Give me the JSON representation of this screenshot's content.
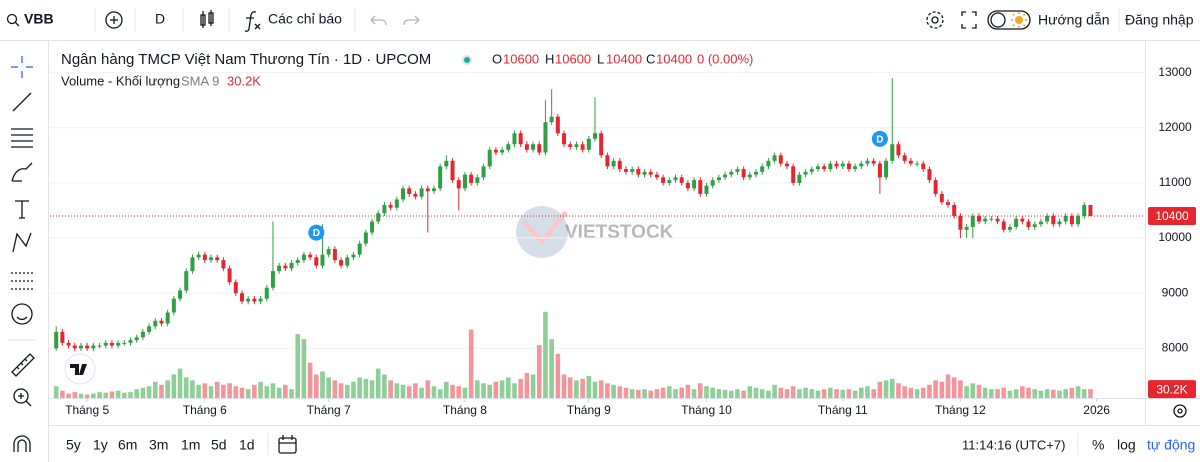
{
  "toolbar": {
    "symbol": "VBB",
    "interval": "D",
    "indicators": "Các chỉ báo",
    "guide": "Hướng dẫn",
    "login": "Đăng nhập"
  },
  "legend": {
    "title": "Ngân hàng TMCP Việt Nam Thương Tín · 1D · UPCOM",
    "o": "O",
    "h": "H",
    "l": "L",
    "c": "C",
    "change": "0 (0.00%)",
    "volume_title": "Volume - Khối lượng",
    "sma": "SMA 9"
  },
  "chart_data": {
    "type": "candlestick",
    "open": [
      8000,
      8300,
      8100,
      8050,
      8000,
      8050,
      8000,
      8050,
      8050,
      8100,
      8050,
      8100,
      8100,
      8150,
      8200,
      8300,
      8400,
      8500,
      8450,
      8650,
      8900,
      9050,
      9400,
      9650,
      9700,
      9600,
      9650,
      9600,
      9450,
      9200,
      9000,
      8850,
      8900,
      8850,
      8900,
      9100,
      9400,
      9500,
      9450,
      9550,
      9600,
      9700,
      9650,
      9500,
      9700,
      9800,
      9600,
      9500,
      9650,
      9700,
      9900,
      10100,
      10300,
      10450,
      10600,
      10550,
      10700,
      10900,
      10800,
      10750,
      10900,
      10850,
      10900,
      11300,
      11400,
      11050,
      10900,
      11150,
      11000,
      11100,
      11300,
      11600,
      11550,
      11600,
      11700,
      11900,
      11700,
      11600,
      11700,
      11550,
      12100,
      12200,
      11900,
      11700,
      11650,
      11700,
      11600,
      11800,
      11900,
      11500,
      11300,
      11400,
      11250,
      11200,
      11250,
      11150,
      11200,
      11150,
      11100,
      11000,
      11050,
      11100,
      11000,
      10900,
      11050,
      10800,
      10950,
      11050,
      11100,
      11150,
      11200,
      11250,
      11100,
      11150,
      11200,
      11300,
      11400,
      11500,
      11350,
      11300,
      11000,
      11150,
      11200,
      11250,
      11300,
      11250,
      11350,
      11300,
      11350,
      11250,
      11300,
      11350,
      11400,
      11350,
      11100,
      11400,
      11700,
      11500,
      11400,
      11350,
      11350,
      11250,
      11050,
      10800,
      10650,
      10600,
      10400,
      10150,
      10200,
      10400,
      10300,
      10350,
      10350,
      10300,
      10150,
      10200,
      10350,
      10300,
      10200,
      10250,
      10300,
      10400,
      10250,
      10300,
      10400,
      10250,
      10400,
      10600
    ],
    "high": [
      8400,
      8350,
      8150,
      8100,
      8100,
      8100,
      8100,
      8100,
      8150,
      8150,
      8150,
      8150,
      8200,
      8250,
      8350,
      8450,
      8550,
      8550,
      8700,
      8950,
      9100,
      9450,
      9700,
      9750,
      9750,
      9700,
      9700,
      9650,
      9500,
      9250,
      9050,
      8950,
      8950,
      8950,
      9150,
      10300,
      9550,
      9550,
      9600,
      9650,
      9750,
      9750,
      9700,
      10250,
      9850,
      9850,
      9650,
      9700,
      9750,
      9950,
      10150,
      10350,
      10500,
      10650,
      10650,
      10750,
      10950,
      10950,
      10850,
      10950,
      10950,
      10950,
      11350,
      11500,
      11450,
      11100,
      11200,
      11200,
      11150,
      11350,
      11650,
      11650,
      11650,
      11750,
      11950,
      11950,
      11750,
      11750,
      11750,
      12500,
      12700,
      12250,
      11950,
      11750,
      11750,
      11750,
      11850,
      12550,
      11950,
      11550,
      11450,
      11450,
      11300,
      11300,
      11300,
      11250,
      11250,
      11200,
      11150,
      11100,
      11150,
      11150,
      11050,
      11100,
      11100,
      11000,
      11100,
      11150,
      11200,
      11250,
      11300,
      11300,
      11200,
      11250,
      11350,
      11450,
      11550,
      11550,
      11400,
      11350,
      11200,
      11250,
      11300,
      11350,
      11350,
      11400,
      11400,
      11400,
      11400,
      11350,
      11400,
      11450,
      11450,
      11400,
      11450,
      12900,
      11750,
      11550,
      11450,
      11400,
      11400,
      11300,
      11100,
      10850,
      10700,
      10650,
      10450,
      10250,
      10450,
      10450,
      10400,
      10400,
      10400,
      10350,
      10250,
      10400,
      10400,
      10350,
      10300,
      10350,
      10450,
      10450,
      10350,
      10450,
      10450,
      10450,
      10650,
      10600
    ],
    "low": [
      7950,
      8050,
      8000,
      7950,
      7950,
      7950,
      7950,
      8000,
      8000,
      8000,
      8000,
      8050,
      8050,
      8100,
      8150,
      8250,
      8350,
      8400,
      8400,
      8600,
      8850,
      9000,
      9350,
      9600,
      9550,
      9550,
      9550,
      9400,
      9150,
      8950,
      8800,
      8800,
      8800,
      8800,
      8850,
      9050,
      9350,
      9400,
      9400,
      9500,
      9550,
      9600,
      9450,
      9450,
      9650,
      9550,
      9450,
      9450,
      9600,
      9650,
      9850,
      10050,
      10250,
      10400,
      10500,
      10500,
      10650,
      10750,
      10700,
      10700,
      10100,
      10800,
      10850,
      11250,
      11000,
      10500,
      10850,
      10950,
      10950,
      11050,
      11250,
      11500,
      11500,
      11550,
      11650,
      11650,
      11550,
      11550,
      11500,
      11500,
      12050,
      11850,
      11650,
      11600,
      11600,
      11550,
      11550,
      11750,
      11450,
      11250,
      11250,
      11200,
      11150,
      11150,
      11100,
      11100,
      11100,
      11050,
      10950,
      10950,
      11000,
      10950,
      10850,
      10850,
      10750,
      10750,
      10900,
      11000,
      11050,
      11100,
      11150,
      11050,
      11050,
      11100,
      11150,
      11250,
      11350,
      11300,
      11250,
      10950,
      10950,
      11100,
      11150,
      11200,
      11200,
      11200,
      11250,
      11250,
      11200,
      11200,
      11250,
      11300,
      11300,
      10800,
      11050,
      11350,
      11450,
      11350,
      11300,
      11300,
      11200,
      11000,
      10750,
      10600,
      10550,
      10350,
      10000,
      10000,
      10000,
      10250,
      10250,
      10300,
      10250,
      10100,
      10100,
      10150,
      10250,
      10150,
      10150,
      10200,
      10250,
      10200,
      10200,
      10250,
      10200,
      10200,
      10350,
      10400
    ],
    "close": [
      8300,
      8100,
      8050,
      8000,
      8050,
      8000,
      8050,
      8050,
      8100,
      8050,
      8100,
      8100,
      8150,
      8200,
      8300,
      8400,
      8500,
      8450,
      8650,
      8900,
      9050,
      9400,
      9650,
      9700,
      9600,
      9650,
      9600,
      9450,
      9200,
      9000,
      8850,
      8900,
      8850,
      8900,
      9100,
      9400,
      9500,
      9450,
      9550,
      9600,
      9700,
      9650,
      9500,
      9700,
      9800,
      9600,
      9500,
      9650,
      9700,
      9900,
      10100,
      10300,
      10450,
      10600,
      10550,
      10700,
      10900,
      10800,
      10750,
      10900,
      10850,
      10900,
      11300,
      11400,
      11050,
      10900,
      11150,
      11000,
      11100,
      11300,
      11600,
      11550,
      11600,
      11700,
      11900,
      11700,
      11600,
      11700,
      11550,
      12100,
      12200,
      11900,
      11700,
      11650,
      11700,
      11600,
      11800,
      11900,
      11500,
      11300,
      11400,
      11250,
      11200,
      11250,
      11150,
      11200,
      11150,
      11100,
      11000,
      11050,
      11100,
      11000,
      10900,
      11050,
      10800,
      10950,
      11050,
      11100,
      11150,
      11200,
      11250,
      11100,
      11150,
      11200,
      11300,
      11400,
      11500,
      11350,
      11300,
      11000,
      11150,
      11200,
      11250,
      11300,
      11250,
      11350,
      11300,
      11350,
      11250,
      11300,
      11350,
      11400,
      11350,
      11100,
      11400,
      11700,
      11500,
      11400,
      11350,
      11350,
      11250,
      11050,
      10800,
      10650,
      10600,
      10400,
      10150,
      10200,
      10400,
      10300,
      10350,
      10350,
      10300,
      10150,
      10200,
      10350,
      10300,
      10200,
      10250,
      10300,
      10400,
      10250,
      10300,
      10400,
      10250,
      10400,
      10600,
      10400
    ],
    "volume": [
      40000,
      25000,
      15000,
      20000,
      15000,
      12000,
      15000,
      20000,
      18000,
      22000,
      25000,
      18000,
      20000,
      30000,
      35000,
      40000,
      55000,
      45000,
      60000,
      80000,
      100000,
      70000,
      60000,
      45000,
      50000,
      40000,
      55000,
      45000,
      50000,
      40000,
      35000,
      30000,
      45000,
      55000,
      40000,
      50000,
      35000,
      45000,
      30000,
      217000,
      200000,
      120000,
      80000,
      90000,
      70000,
      60000,
      50000,
      45000,
      55000,
      70000,
      65000,
      60000,
      100000,
      80000,
      60000,
      50000,
      45000,
      40000,
      50000,
      35000,
      60000,
      40000,
      30000,
      55000,
      45000,
      40000,
      35000,
      233000,
      60000,
      50000,
      45000,
      55000,
      60000,
      70000,
      50000,
      65000,
      85000,
      80000,
      180000,
      293000,
      200000,
      150000,
      80000,
      70000,
      60000,
      65000,
      75000,
      55000,
      60000,
      50000,
      45000,
      40000,
      35000,
      30000,
      28000,
      30000,
      25000,
      30000,
      35000,
      40000,
      30000,
      35000,
      45000,
      30000,
      50000,
      40000,
      35000,
      30000,
      28000,
      25000,
      30000,
      25000,
      40000,
      35000,
      30000,
      25000,
      45000,
      35000,
      30000,
      40000,
      30000,
      35000,
      30000,
      25000,
      30000,
      35000,
      30000,
      28000,
      30000,
      25000,
      35000,
      40000,
      30000,
      55000,
      60000,
      65000,
      50000,
      40000,
      35000,
      30000,
      35000,
      45000,
      60000,
      55000,
      80000,
      70000,
      60000,
      40000,
      50000,
      45000,
      35000,
      30000,
      30000,
      35000,
      25000,
      30000,
      40000,
      35000,
      30000,
      25000,
      30000,
      28000,
      25000,
      30000,
      35000,
      40000,
      30000,
      30200
    ],
    "volume_label": "30.2K",
    "up_color": "#2f9e44",
    "down_color": "#e5262f",
    "volume_up_color": "#8dcf97",
    "volume_down_color": "#f4959b",
    "ylim": [
      7100,
      13500
    ],
    "yticks": [
      8000,
      9000,
      10000,
      11000,
      12000,
      13000
    ],
    "volume_ylim": [
      0,
      1200000
    ],
    "xlim": [
      -1,
      175
    ],
    "xticks": [
      {
        "value": 5,
        "label": "Tháng 5"
      },
      {
        "value": 24,
        "label": "Tháng 6"
      },
      {
        "value": 44,
        "label": "Tháng 7"
      },
      {
        "value": 66,
        "label": "Tháng 8"
      },
      {
        "value": 86,
        "label": "Tháng 9"
      },
      {
        "value": 105,
        "label": "Tháng 10"
      },
      {
        "value": 127,
        "label": "Tháng 11"
      },
      {
        "value": 146,
        "label": "Tháng 12"
      },
      {
        "value": 168,
        "label": "2026"
      }
    ],
    "events": [
      {
        "label": "D",
        "x": 42
      },
      {
        "label": "D",
        "x": 133
      }
    ],
    "watermark": "VIETSTOCK"
  },
  "bottom_bar": {
    "ranges": [
      "5y",
      "1y",
      "6m",
      "3m",
      "1m",
      "5d",
      "1d"
    ],
    "time": "11:14:16 (UTC+7)",
    "percent": "%",
    "log": "log",
    "auto": "tự động"
  }
}
